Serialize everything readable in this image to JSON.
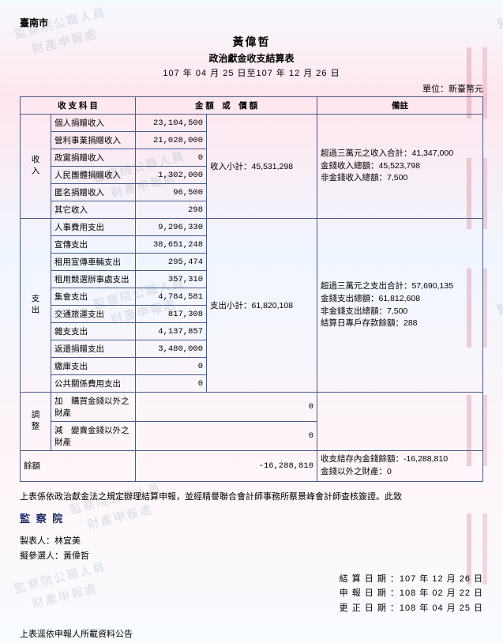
{
  "city": "臺南市",
  "name": "黃偉哲",
  "subtitle": "政治獻金收支結算表",
  "period": "107 年 04 月 25 日至107 年 12 月 26 日",
  "unit": "單位：新臺幣元",
  "headers": {
    "item": "收 支 科 目",
    "amount": "金 額　或　價 額",
    "remarks": "備註"
  },
  "sections": {
    "income": {
      "label": "收入",
      "rows": [
        {
          "name": "個人捐贈收入",
          "amount": "23,104,500"
        },
        {
          "name": "營利事業捐贈收入",
          "amount": "21,028,000"
        },
        {
          "name": "政黨捐贈收入",
          "amount": "0"
        },
        {
          "name": "人民團體捐贈收入",
          "amount": "1,302,000"
        },
        {
          "name": "匿名捐贈收入",
          "amount": "96,500"
        },
        {
          "name": "其它收入",
          "amount": "298"
        }
      ],
      "subtotal_label": "收入小計：",
      "subtotal": "45,531,298",
      "remarks": "超過三萬元之收入合計：41,347,000\n金錢收入總額：45,523,798\n非金錢收入總額：7,500"
    },
    "expense": {
      "label": "支出",
      "rows": [
        {
          "name": "人事費用支出",
          "amount": "9,296,330"
        },
        {
          "name": "宣傳支出",
          "amount": "38,651,248"
        },
        {
          "name": "租用宣傳車輛支出",
          "amount": "295,474"
        },
        {
          "name": "租用競選辦事處支出",
          "amount": "357,310"
        },
        {
          "name": "集會支出",
          "amount": "4,784,581"
        },
        {
          "name": "交通旅運支出",
          "amount": "817,308"
        },
        {
          "name": "雜支支出",
          "amount": "4,137,857"
        },
        {
          "name": "返還捐贈支出",
          "amount": "3,480,000"
        },
        {
          "name": "繳庫支出",
          "amount": "0"
        },
        {
          "name": "公共關係費用支出",
          "amount": "0"
        }
      ],
      "subtotal_label": "支出小計：",
      "subtotal": "61,820,108",
      "remarks": "超過三萬元之支出合計：57,690,135\n金錢支出總額：61,812,608\n非金錢支出總額：7,500\n結算日專戶存款餘額：288"
    },
    "adjust": {
      "label": "調整",
      "add_label": "加",
      "add_name": "購買金錢以外之財產",
      "add_amount": "0",
      "sub_label": "減",
      "sub_name": "變賣金錢以外之財產",
      "sub_amount": "0"
    },
    "balance": {
      "name": "餘額",
      "amount": "-16,288,810",
      "remarks": "收支結存內金錢餘額：-16,288,810\n金錢以外之財產：0"
    }
  },
  "footer": {
    "note": "上表係依政治獻金法之規定辦理結算申報，並經精譽聯合會計師事務所蔡景峰會計師查核簽證。此致",
    "org": "監 察 院",
    "preparer_label": "製表人：",
    "preparer": "林宜美",
    "candidate_label": "擬參選人：",
    "candidate": "黃偉哲",
    "dates": {
      "d1_label": "結 算 日 期 ：",
      "d1": "107 年 12 月 26 日",
      "d2_label": "申 報 日 期 ：",
      "d2": "108 年 02 月 22 日",
      "d3_label": "更 正 日 期 ：",
      "d3": "108 年 04 月 25 日"
    },
    "publish": "上表逕依申報人所載資料公告"
  },
  "watermark": "監察院公職人員\n　財產申報處"
}
